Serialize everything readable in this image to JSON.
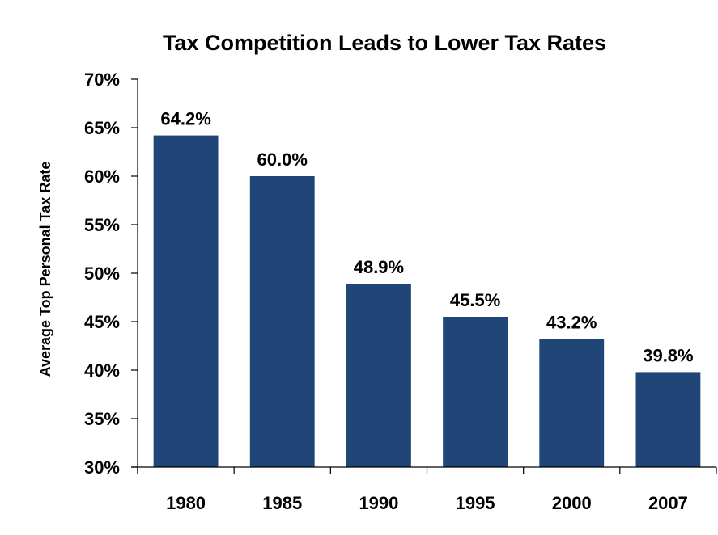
{
  "chart_data": {
    "type": "bar",
    "title": "Tax Competition Leads to Lower Tax Rates",
    "xlabel": "",
    "ylabel": "Average Top Personal Tax Rate",
    "categories": [
      "1980",
      "1985",
      "1990",
      "1995",
      "2000",
      "2007"
    ],
    "values": [
      64.2,
      60.0,
      48.9,
      45.5,
      43.2,
      39.8
    ],
    "data_labels": [
      "64.2%",
      "60.0%",
      "48.9%",
      "45.5%",
      "43.2%",
      "39.8%"
    ],
    "ylim": [
      30,
      70
    ],
    "yticks": [
      30,
      35,
      40,
      45,
      50,
      55,
      60,
      65,
      70
    ],
    "ytick_labels": [
      "30%",
      "35%",
      "40%",
      "45%",
      "50%",
      "55%",
      "60%",
      "65%",
      "70%"
    ],
    "grid": false,
    "legend": "none",
    "bar_color": "#1f4677"
  }
}
